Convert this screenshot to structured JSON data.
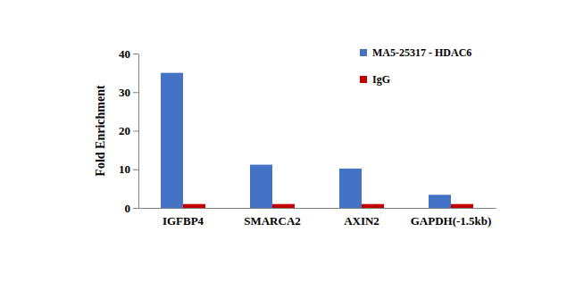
{
  "chart_data": {
    "type": "bar",
    "y_label": "Fold Enrichment",
    "categories": [
      "IGFBP4",
      "SMARCA2",
      "AXIN2",
      "GAPDH(-1.5kb)"
    ],
    "series": [
      {
        "name": "MA5-25317 - HDAC6",
        "color": "#4472c4",
        "values": [
          35,
          11.2,
          10.2,
          3.4
        ]
      },
      {
        "name": "IgG",
        "color": "#c00000",
        "values": [
          1,
          1,
          1,
          1
        ]
      }
    ],
    "ylim": [
      0,
      40
    ],
    "yticks": [
      0,
      10,
      20,
      30,
      40
    ],
    "grid": false,
    "legend": "top-right"
  }
}
